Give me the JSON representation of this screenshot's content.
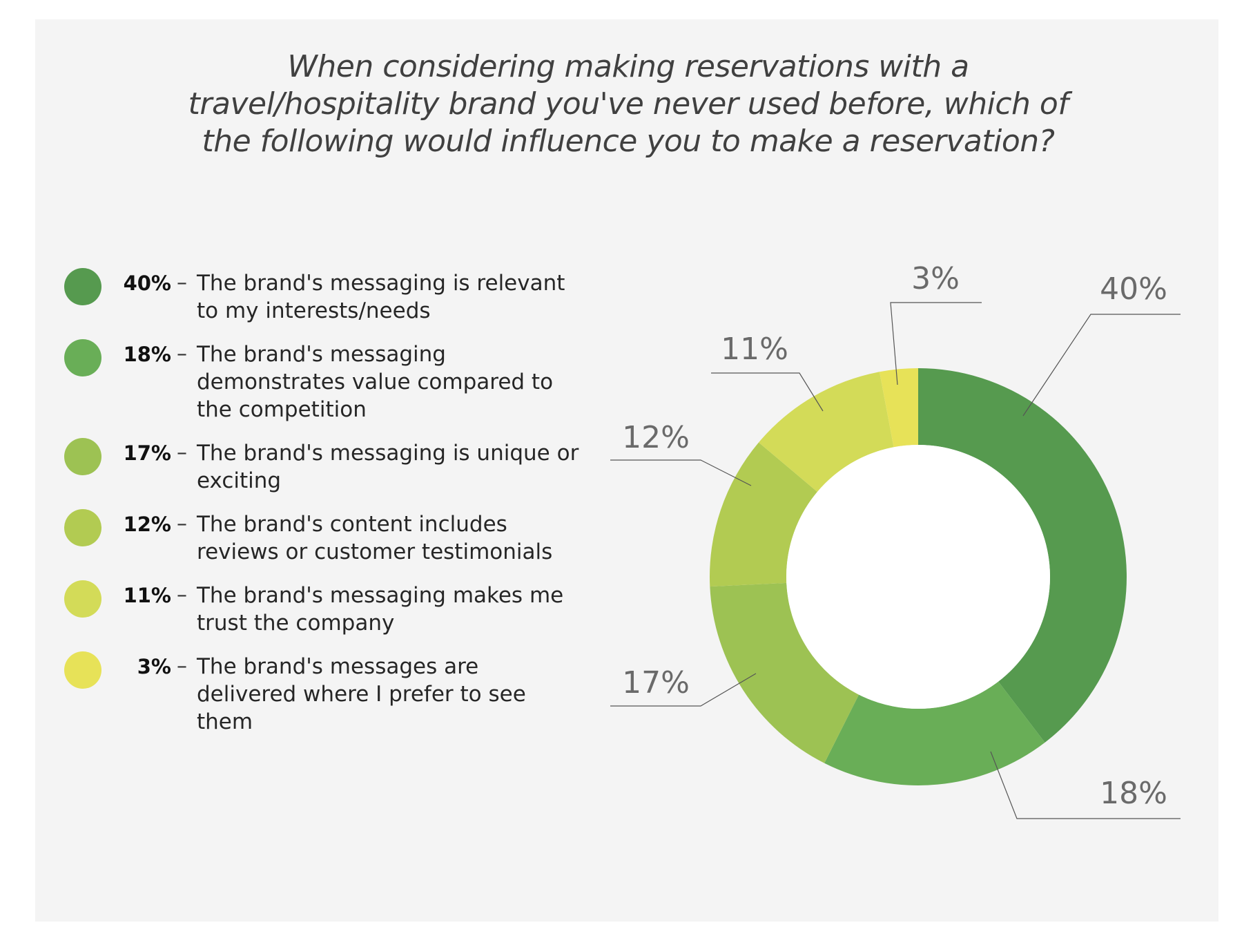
{
  "chart_data": {
    "type": "pie",
    "variant": "donut",
    "title": "When considering making reservations with a travel/hospitality brand you've never used before, which of the following would influence you to make a reservation?",
    "legend_position": "left",
    "slices": [
      {
        "pct_label": "40%",
        "value": 40,
        "color": "#569a4f",
        "label": "The brand's messaging is relevant to my interests/needs"
      },
      {
        "pct_label": "18%",
        "value": 18,
        "color": "#69ae57",
        "label": "The brand's messaging demonstrates value compared to the competition"
      },
      {
        "pct_label": "17%",
        "value": 17,
        "color": "#9dc253",
        "label": "The brand's messaging is unique or exciting"
      },
      {
        "pct_label": "12%",
        "value": 12,
        "color": "#b2cb52",
        "label": "The brand's content includes reviews or customer testimonials"
      },
      {
        "pct_label": "11%",
        "value": 11,
        "color": "#d3db58",
        "label": "The brand's messaging makes me trust the company"
      },
      {
        "pct_label": "3%",
        "value": 3,
        "color": "#e7e258",
        "label": "The brand's messages are delivered where I prefer to see them"
      }
    ]
  }
}
